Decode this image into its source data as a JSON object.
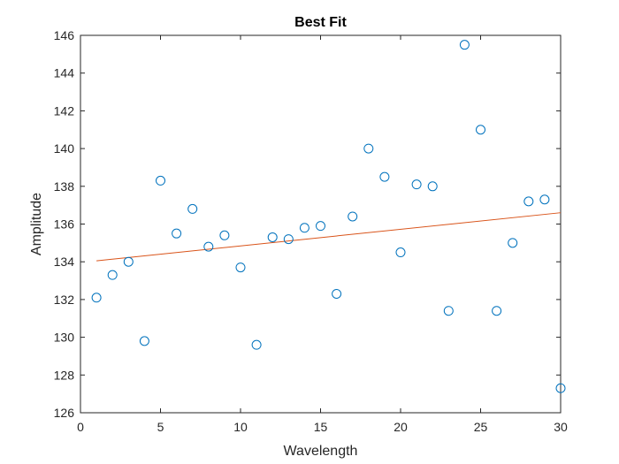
{
  "chart_data": {
    "type": "scatter",
    "title": "Best Fit",
    "xlabel": "Wavelength",
    "ylabel": "Amplitude",
    "xlim": [
      0,
      30
    ],
    "ylim": [
      126,
      146
    ],
    "xticks": [
      0,
      5,
      10,
      15,
      20,
      25,
      30
    ],
    "yticks": [
      126,
      128,
      130,
      132,
      134,
      136,
      138,
      140,
      142,
      144,
      146
    ],
    "xtick_labels": [
      "0",
      "5",
      "10",
      "15",
      "20",
      "25",
      "30"
    ],
    "ytick_labels": [
      "126",
      "128",
      "130",
      "132",
      "134",
      "136",
      "138",
      "140",
      "142",
      "144",
      "146"
    ],
    "grid": false,
    "points": {
      "x": [
        1,
        2,
        3,
        4,
        5,
        6,
        7,
        8,
        9,
        10,
        11,
        12,
        13,
        14,
        15,
        16,
        17,
        18,
        19,
        20,
        21,
        22,
        23,
        24,
        25,
        26,
        27,
        28,
        29,
        30
      ],
      "y": [
        132.1,
        133.3,
        134.0,
        129.8,
        138.3,
        135.5,
        136.8,
        134.8,
        135.4,
        133.7,
        129.6,
        135.3,
        135.2,
        135.8,
        135.9,
        132.3,
        136.4,
        140.0,
        138.5,
        134.5,
        138.1,
        138.0,
        131.4,
        145.5,
        141.0,
        131.4,
        135.0,
        137.2,
        137.3,
        127.3
      ],
      "color": "#0072bd",
      "marker": "circle-open"
    },
    "fit_line": {
      "x": [
        1,
        30
      ],
      "y": [
        134.05,
        136.6
      ],
      "color": "#d95319"
    }
  }
}
